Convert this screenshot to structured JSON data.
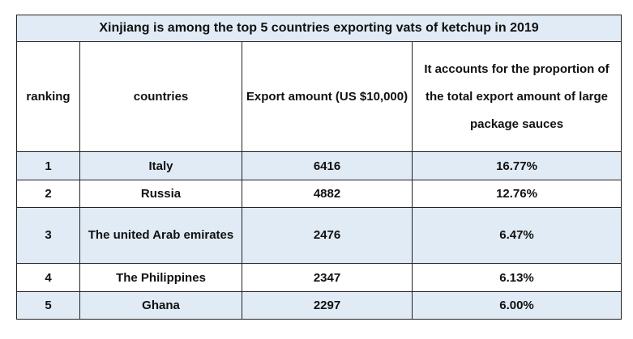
{
  "table": {
    "title": "Xinjiang is among the top 5 countries exporting vats of ketchup in 2019",
    "headers": {
      "ranking": "ranking",
      "countries": "countries",
      "amount": "Export amount (US $10,000)",
      "proportion": "It accounts for the proportion of the total export amount of large package sauces"
    },
    "rows": [
      {
        "rank": "1",
        "country": "Italy",
        "amount": "6416",
        "share": "16.77%"
      },
      {
        "rank": "2",
        "country": "Russia",
        "amount": "4882",
        "share": "12.76%"
      },
      {
        "rank": "3",
        "country": "The united Arab emirates",
        "amount": "2476",
        "share": "6.47%"
      },
      {
        "rank": "4",
        "country": "The Philippines",
        "amount": "2347",
        "share": "6.13%"
      },
      {
        "rank": "5",
        "country": "Ghana",
        "amount": "2297",
        "share": "6.00%"
      }
    ],
    "colors": {
      "shade": "#e1ebf5",
      "border": "#222222"
    }
  }
}
